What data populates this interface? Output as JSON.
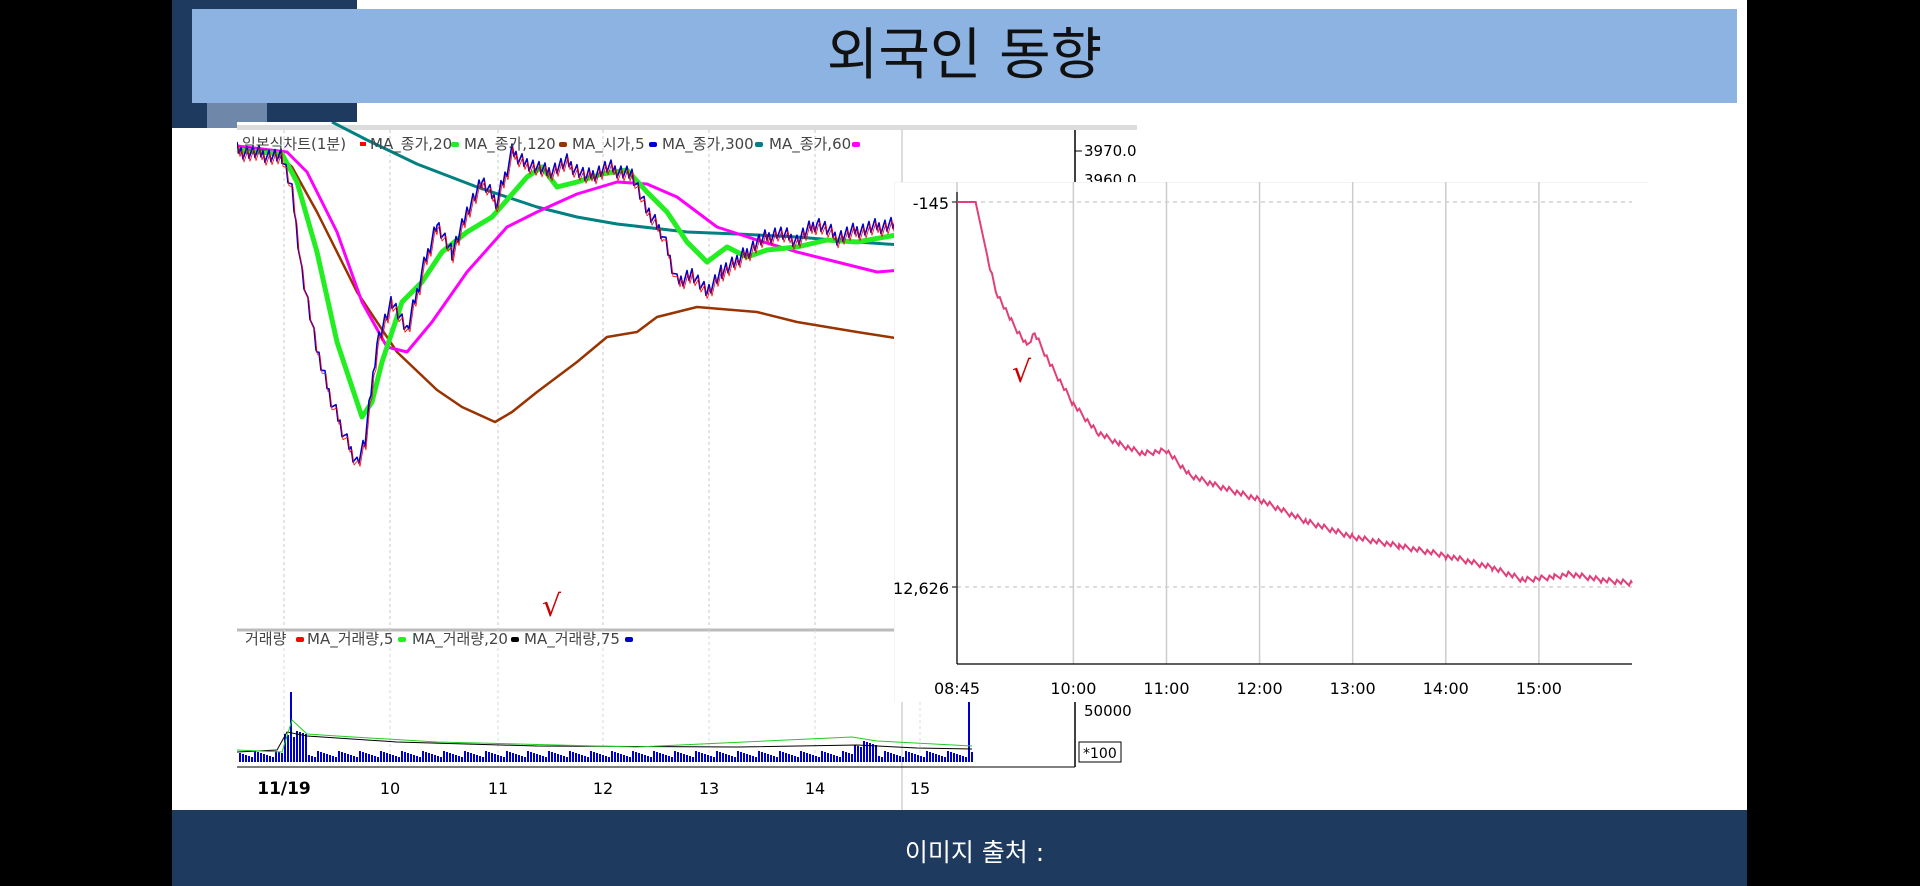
{
  "slide": {
    "title": "외국인 동향",
    "footer": "이미지 출처 :"
  },
  "colors": {
    "ma_close_20": "#ff0000",
    "ma_close_120": "#22ee22",
    "ma_open_5": "#993300",
    "ma_close_300": "#0000cc",
    "ma_close_60": "#008080",
    "ma_extra": "#ff00ff",
    "foreign_line": "#e0407a"
  },
  "chart_data": [
    {
      "type": "line",
      "title": "",
      "legend_label": "일본식차트(1분)",
      "legend": [
        {
          "label": "MA_종가,20",
          "color": "#0000cc"
        },
        {
          "label": "MA_종가,120",
          "color": "#22ee22"
        },
        {
          "label": "MA_시가,5",
          "color": "#993300"
        },
        {
          "label": "MA_종가,300",
          "color": "#0000cc"
        },
        {
          "label": "MA_종가,60",
          "color": "#008080"
        }
      ],
      "y_tick_labels": [
        "3970.00",
        "3960.00"
      ],
      "x_tick_labels": [
        "11/19",
        "10",
        "11",
        "12",
        "13",
        "14",
        "15"
      ],
      "annotation": "√",
      "volume_panel": {
        "label": "거래량",
        "legend": [
          {
            "label": "MA_거래량,5",
            "color": "#ff0000"
          },
          {
            "label": "MA_거래량,20",
            "color": "#22ee22"
          },
          {
            "label": "MA_거래량,75",
            "color": "#000000"
          }
        ],
        "y_tick_label": "50000",
        "unit_label": "*100"
      }
    },
    {
      "type": "line",
      "title": "",
      "x_tick_labels": [
        "08:45",
        "10:00",
        "11:00",
        "12:00",
        "13:00",
        "14:00",
        "15:00"
      ],
      "y_tick_labels": [
        "-145",
        "-12,626"
      ],
      "ylim": [
        -12626,
        -145
      ],
      "annotation": "√",
      "series": [
        {
          "x": [
            "08:45",
            "08:57",
            "09:05",
            "09:10",
            "09:20",
            "09:30",
            "09:35",
            "09:45",
            "10:00",
            "10:15",
            "10:30",
            "10:45",
            "11:00",
            "11:15",
            "11:30",
            "12:00",
            "12:30",
            "13:00",
            "13:30",
            "14:00",
            "14:30",
            "14:50",
            "15:10",
            "15:20",
            "15:40",
            "16:00"
          ],
          "values": [
            -145,
            -145,
            -2000,
            -3000,
            -4000,
            -4800,
            -4400,
            -5400,
            -6700,
            -7600,
            -8000,
            -8300,
            -8200,
            -9000,
            -9300,
            -9800,
            -10500,
            -11000,
            -11300,
            -11600,
            -12000,
            -12400,
            -12300,
            -12200,
            -12400,
            -12500
          ]
        }
      ]
    }
  ]
}
